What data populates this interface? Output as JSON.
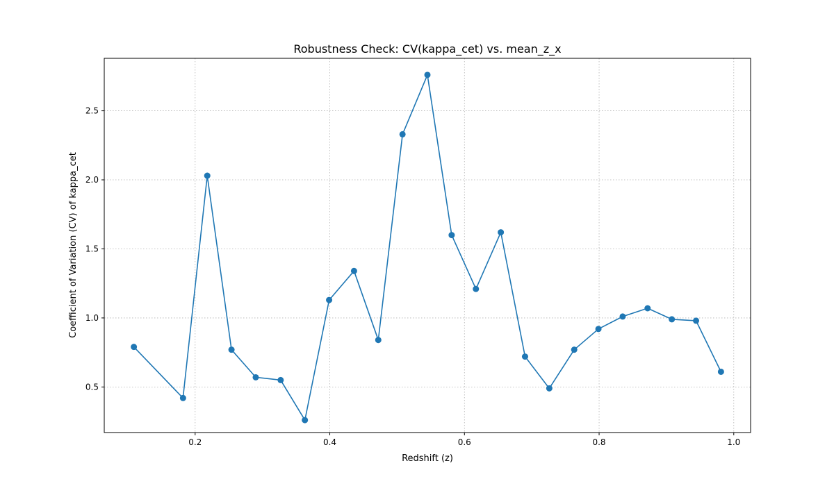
{
  "chart_data": {
    "type": "line",
    "title": "Robustness Check: CV(kappa_cet) vs. mean_z_x",
    "xlabel": "Redshift (z)",
    "ylabel": "Coefficient of Variation (CV) of kappa_cet",
    "xlim": [
      0.065,
      1.025
    ],
    "ylim": [
      0.17,
      2.88
    ],
    "grid": true,
    "marker": "circle",
    "color": "#1f77b4",
    "xticks": [
      0.2,
      0.4,
      0.6,
      0.8,
      1.0
    ],
    "xtick_labels": [
      "0.2",
      "0.4",
      "0.6",
      "0.8",
      "1.0"
    ],
    "yticks": [
      0.5,
      1.0,
      1.5,
      2.0,
      2.5
    ],
    "ytick_labels": [
      "0.5",
      "1.0",
      "1.5",
      "2.0",
      "2.5"
    ],
    "series": [
      {
        "x": [
          0.109,
          0.182,
          0.218,
          0.254,
          0.29,
          0.327,
          0.363,
          0.399,
          0.436,
          0.472,
          0.508,
          0.545,
          0.581,
          0.617,
          0.654,
          0.69,
          0.726,
          0.763,
          0.799,
          0.835,
          0.872,
          0.908,
          0.944,
          0.981
        ],
        "y": [
          0.79,
          0.42,
          2.03,
          0.77,
          0.57,
          0.55,
          0.26,
          1.13,
          1.34,
          0.84,
          2.33,
          2.76,
          1.6,
          1.21,
          1.62,
          0.72,
          0.49,
          0.77,
          0.92,
          1.01,
          1.07,
          0.99,
          0.98,
          0.61
        ]
      }
    ]
  }
}
